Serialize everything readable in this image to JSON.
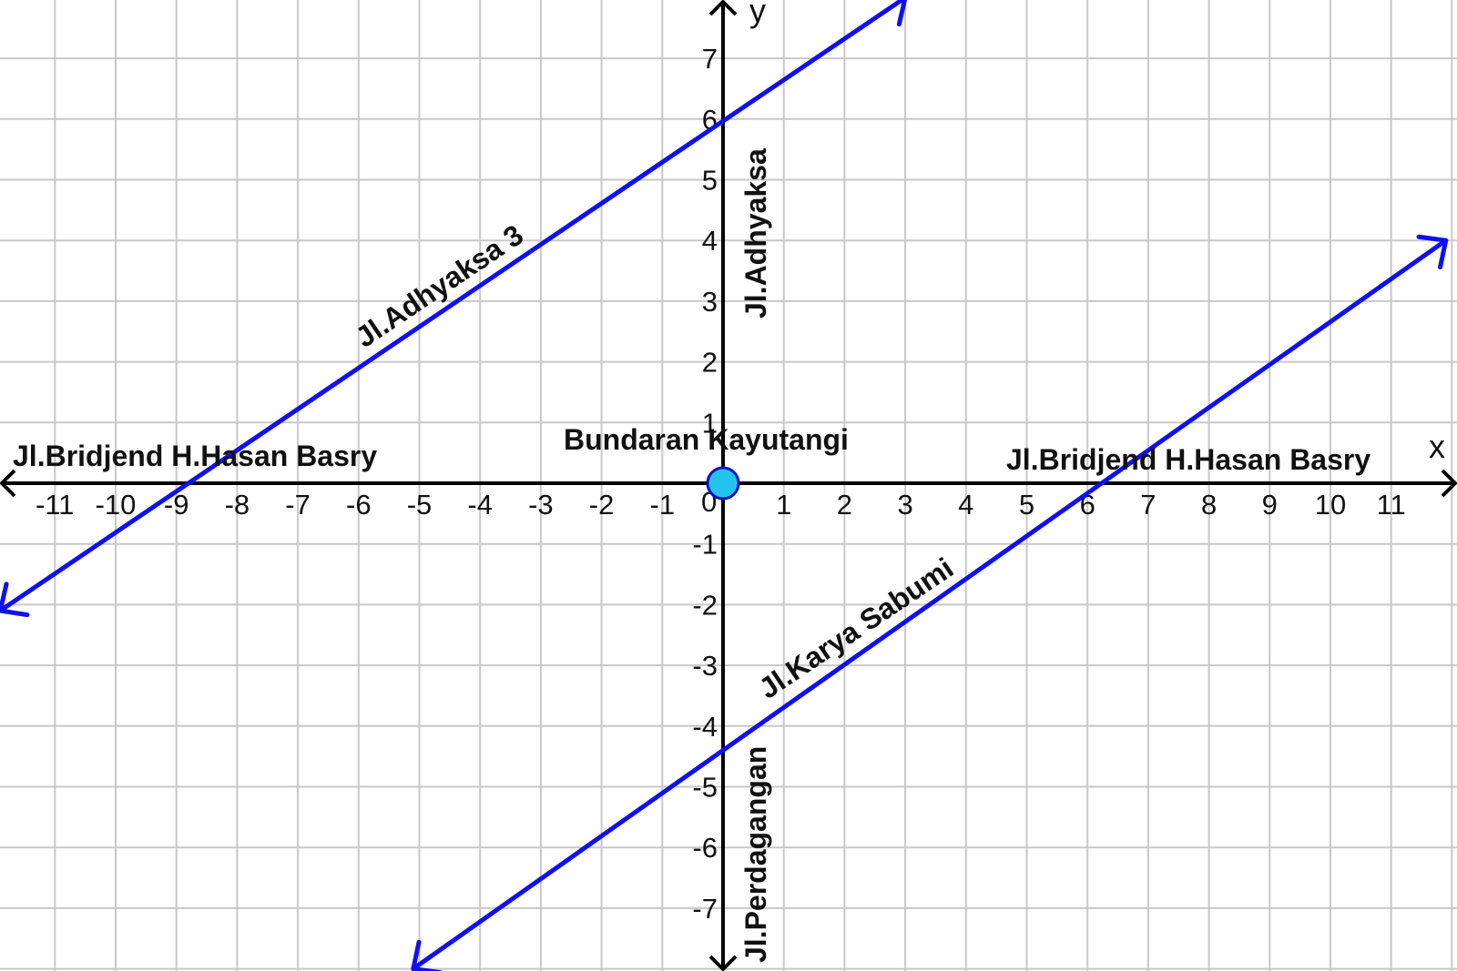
{
  "colors": {
    "grid": "#c8c8c8",
    "axis": "#000000",
    "road": "#1010f0",
    "marker_fill": "#22c4ee",
    "marker_stroke": "#1010c0"
  },
  "axes": {
    "x_label": "x",
    "y_label": "y",
    "origin_label": "0",
    "x_ticks": [
      -11,
      -10,
      -9,
      -8,
      -7,
      -6,
      -5,
      -4,
      -3,
      -2,
      -1,
      1,
      2,
      3,
      4,
      5,
      6,
      7,
      8,
      9,
      10,
      11
    ],
    "y_ticks": [
      -7,
      -6,
      -5,
      -4,
      -3,
      -2,
      -1,
      1,
      2,
      3,
      4,
      5,
      6,
      7
    ],
    "x_range": [
      -11.9,
      12.1
    ],
    "y_range": [
      -8.0,
      8.0
    ]
  },
  "roads": [
    {
      "name": "road-adhyaksa-3",
      "from": [
        -11.9,
        -2.1
      ],
      "to": [
        3.0,
        8.0
      ]
    },
    {
      "name": "road-karya-sabumi",
      "from": [
        -5.1,
        -8.0
      ],
      "to": [
        11.9,
        4.0
      ]
    }
  ],
  "marker": {
    "name": "bundaran-kayutangi-marker",
    "x": 0,
    "y": 0
  },
  "labels": {
    "bridjend_left": "Jl.Bridjend H.Hasan Basry",
    "bridjend_right": "Jl.Bridjend H.Hasan Basry",
    "adhyaksa_3": "Jl.Adhyaksa 3",
    "adhyaksa": "Jl.Adhyaksa",
    "karya_sabumi": "Jl.Karya Sabumi",
    "perdagangan": "Jl.Perdagangan",
    "bundaran": "Bundaran Kayutangi"
  }
}
